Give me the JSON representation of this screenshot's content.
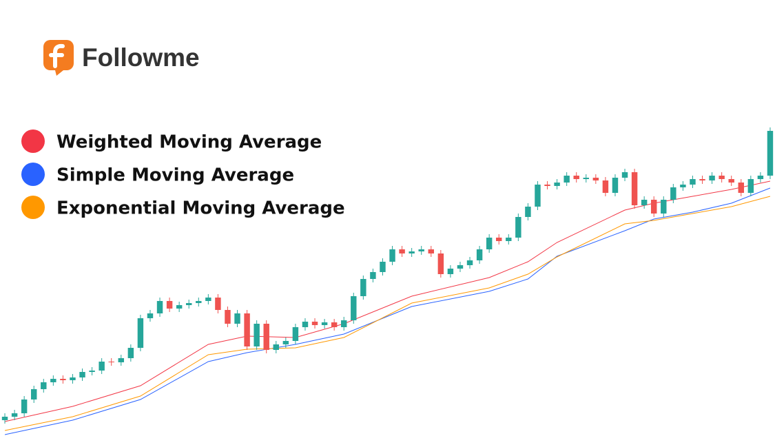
{
  "brand": "Followme",
  "chart_data": {
    "type": "candlestick",
    "up_color": "#26a69a",
    "down_color": "#ef5350",
    "xlim": [
      -0.5,
      79.5
    ],
    "ylim": [
      0,
      500
    ],
    "open": [
      23,
      28,
      33,
      53,
      68,
      78,
      83,
      81,
      85,
      93,
      95,
      108,
      107,
      113,
      128,
      171,
      178,
      196,
      185,
      190,
      193,
      196,
      201,
      183,
      163,
      178,
      130,
      163,
      125,
      133,
      138,
      158,
      166,
      161,
      165,
      158,
      168,
      203,
      228,
      238,
      253,
      271,
      265,
      268,
      271,
      265,
      235,
      243,
      248,
      255,
      271,
      288,
      283,
      288,
      318,
      333,
      365,
      363,
      368,
      378,
      373,
      375,
      371,
      353,
      375,
      383,
      335,
      343,
      323,
      343,
      361,
      365,
      373,
      371,
      378,
      373,
      368,
      353,
      373,
      378
    ],
    "high": [
      33,
      38,
      58,
      73,
      83,
      88,
      88,
      90,
      98,
      100,
      113,
      113,
      118,
      133,
      176,
      183,
      201,
      201,
      195,
      198,
      201,
      206,
      206,
      188,
      183,
      183,
      168,
      168,
      138,
      143,
      163,
      171,
      171,
      170,
      170,
      173,
      208,
      233,
      243,
      258,
      276,
      276,
      273,
      276,
      276,
      270,
      248,
      253,
      260,
      276,
      293,
      293,
      293,
      323,
      338,
      370,
      370,
      373,
      383,
      383,
      380,
      380,
      376,
      380,
      388,
      388,
      348,
      348,
      348,
      366,
      370,
      378,
      378,
      383,
      383,
      378,
      373,
      378,
      383,
      448
    ],
    "low": [
      18,
      23,
      28,
      48,
      63,
      73,
      76,
      76,
      80,
      88,
      90,
      102,
      102,
      108,
      123,
      166,
      173,
      180,
      180,
      185,
      188,
      191,
      178,
      158,
      158,
      125,
      125,
      120,
      120,
      128,
      133,
      153,
      156,
      156,
      153,
      153,
      163,
      198,
      223,
      233,
      248,
      260,
      260,
      263,
      260,
      230,
      230,
      238,
      243,
      250,
      266,
      278,
      278,
      283,
      313,
      328,
      358,
      358,
      363,
      368,
      368,
      366,
      348,
      348,
      370,
      330,
      330,
      318,
      318,
      338,
      356,
      360,
      366,
      366,
      368,
      363,
      348,
      348,
      368,
      373
    ],
    "close": [
      28,
      33,
      53,
      68,
      78,
      83,
      81,
      85,
      93,
      95,
      108,
      107,
      113,
      128,
      171,
      178,
      196,
      185,
      190,
      193,
      196,
      201,
      183,
      163,
      178,
      130,
      163,
      125,
      133,
      138,
      158,
      166,
      161,
      165,
      158,
      168,
      203,
      228,
      238,
      253,
      271,
      265,
      268,
      271,
      265,
      235,
      243,
      248,
      255,
      271,
      288,
      283,
      288,
      318,
      333,
      365,
      363,
      368,
      378,
      373,
      375,
      371,
      353,
      375,
      383,
      335,
      343,
      323,
      343,
      361,
      365,
      373,
      371,
      378,
      373,
      368,
      353,
      373,
      378,
      443
    ],
    "series": [
      {
        "name": "Weighted Moving Average",
        "color": "#f23645",
        "x": [
          0,
          7,
          14,
          21,
          25,
          30,
          35,
          42,
          50,
          54,
          57,
          64,
          67,
          71,
          75,
          79
        ],
        "values": [
          21,
          43,
          73,
          133,
          145,
          143,
          163,
          203,
          230,
          253,
          281,
          328,
          338,
          348,
          358,
          370
        ]
      },
      {
        "name": "Simple Moving Average",
        "color": "#2962ff",
        "x": [
          0,
          7,
          14,
          21,
          25,
          30,
          35,
          42,
          50,
          54,
          57,
          64,
          67,
          71,
          75,
          79
        ],
        "values": [
          2,
          23,
          53,
          108,
          121,
          133,
          148,
          188,
          210,
          228,
          261,
          298,
          315,
          325,
          338,
          360
        ]
      },
      {
        "name": "Exponential Moving Average",
        "color": "#ff9800",
        "x": [
          0,
          7,
          14,
          21,
          25,
          30,
          35,
          42,
          50,
          54,
          57,
          64,
          67,
          71,
          75,
          79
        ],
        "values": [
          8,
          28,
          58,
          118,
          126,
          128,
          143,
          193,
          215,
          235,
          260,
          308,
          313,
          323,
          333,
          348
        ]
      }
    ]
  }
}
